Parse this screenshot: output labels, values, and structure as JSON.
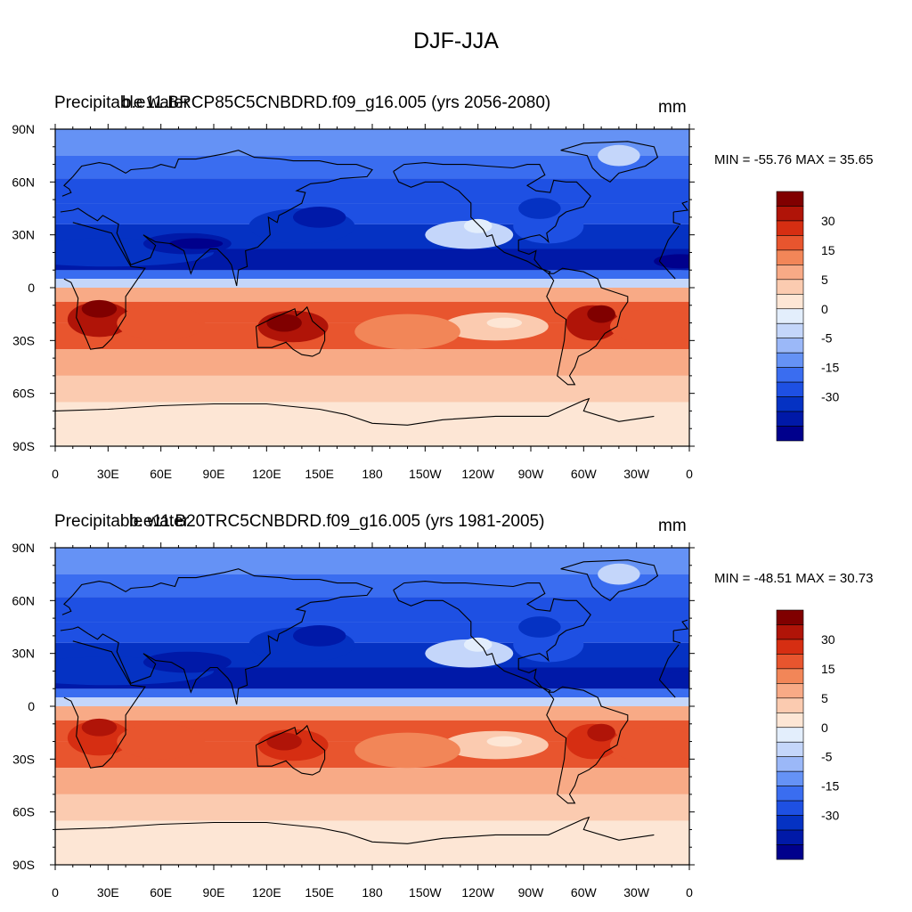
{
  "figure_title": "DJF-JJA",
  "colors": {
    "levels": [
      "#00008C",
      "#0019A8",
      "#0532C3",
      "#1E50E3",
      "#3A6DF0",
      "#6592F5",
      "#9BB8F8",
      "#C4D6FA",
      "#E3EEFC",
      "#FDE6D5",
      "#FBCBB0",
      "#F8AA86",
      "#F28658",
      "#E8552E",
      "#D62E12",
      "#B01408",
      "#800000"
    ],
    "outline": "#000000"
  },
  "colorbar_labels": [
    "30",
    "15",
    "5",
    "0",
    "-5",
    "-15",
    "-30"
  ],
  "x_tick_labels": [
    "0",
    "30E",
    "60E",
    "90E",
    "120E",
    "150E",
    "180",
    "150W",
    "120W",
    "90W",
    "60W",
    "30W",
    "0"
  ],
  "y_tick_labels": [
    "90N",
    "60N",
    "30N",
    "0",
    "30S",
    "60S",
    "90S"
  ],
  "panels": [
    {
      "title_left": "Precipitable water",
      "title_center": "b.e11.BRCP85C5CNBDRD.f09_g16.005 (yrs 2056-2080)",
      "units": "mm",
      "minmax": "MIN = -55.76 MAX =  35.65",
      "variant": "future"
    },
    {
      "title_left": "Precipitable water",
      "title_center": "b.e11.B20TRC5CNBDRD.f09_g16.005 (yrs 1981-2005)",
      "units": "mm",
      "minmax": "MIN = -48.51 MAX =  30.73",
      "variant": "historical"
    }
  ]
}
